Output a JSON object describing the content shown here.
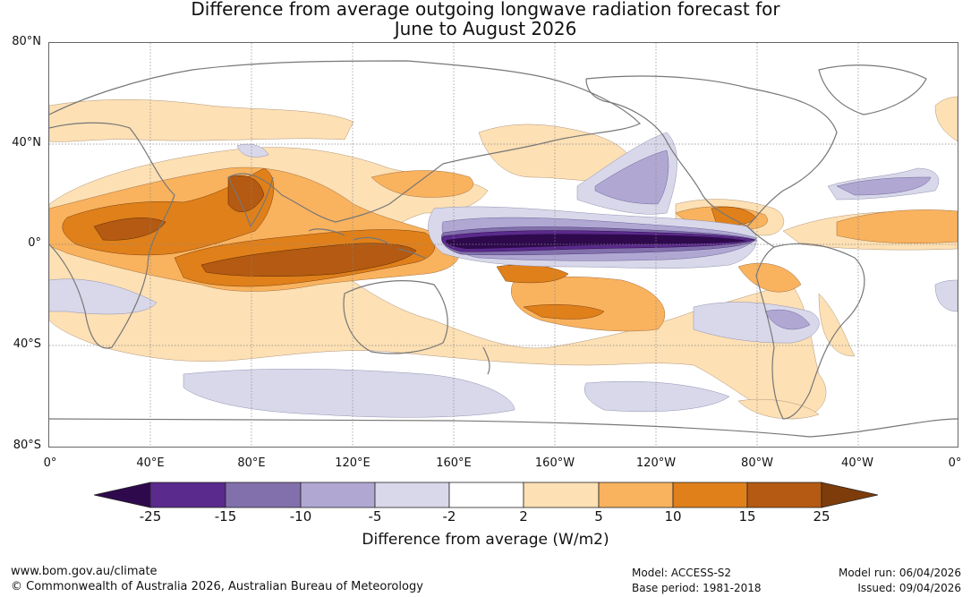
{
  "title": {
    "line1": "Difference from average outgoing longwave radiation forecast for",
    "line2": "June to August 2026"
  },
  "axes": {
    "lat_labels": [
      "80°N",
      "40°N",
      "0°",
      "40°S",
      "80°S"
    ],
    "lon_labels": [
      "0°",
      "40°E",
      "80°E",
      "120°E",
      "160°E",
      "160°W",
      "120°W",
      "80°W",
      "40°W",
      "0°"
    ]
  },
  "colorbar": {
    "ticks": [
      "-25",
      "-15",
      "-10",
      "-5",
      "-2",
      "2",
      "5",
      "10",
      "15",
      "25"
    ],
    "colors": [
      "#2e0a4c",
      "#5a2a8c",
      "#8270ac",
      "#b0a8d2",
      "#d8d8ea",
      "#ffffff",
      "#fde0b4",
      "#f9b25e",
      "#e0801a",
      "#b45a12",
      "#7e3c0a"
    ],
    "title": "Difference from average (W/m2)"
  },
  "footer": {
    "website": "www.bom.gov.au/climate",
    "copyright": "© Commonwealth of Australia 2026, Australian Bureau of Meteorology",
    "model": "Model: ACCESS-S2",
    "base_period": "Base period: 1981-2018",
    "model_run": "Model run: 06/04/2026",
    "issued": "Issued: 09/04/2026"
  },
  "map": {
    "land_color": "#888888",
    "grid_color": "#888888"
  }
}
